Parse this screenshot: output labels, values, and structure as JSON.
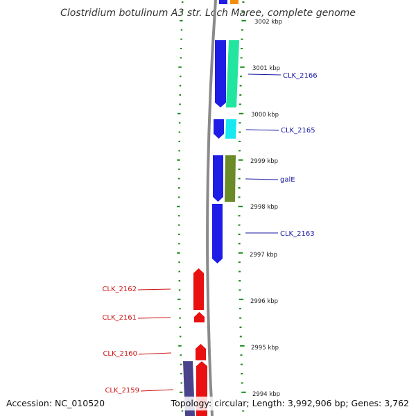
{
  "title": "Clostridium botulinum A3 str. Loch Maree, complete genome",
  "accession": "Accession: NC_010520",
  "topology": "Topology: circular; Length: 3,992,906 bp; Genes: 3,762",
  "kbp_labels": [
    "3002 kbp",
    "3001 kbp",
    "3000 kbp",
    "2999 kbp",
    "2998 kbp",
    "2997 kbp",
    "2996 kbp",
    "2995 kbp",
    "2994 kbp"
  ],
  "forward_genes": [
    {
      "label": "CLK_2166",
      "color": "#1d1de6"
    },
    {
      "label": "CLK_2165",
      "color": "#1d1de6"
    },
    {
      "label": "galE",
      "color": "#1d1de6"
    },
    {
      "label": "CLK_2163",
      "color": "#1d1de6"
    }
  ],
  "reverse_genes": [
    {
      "label": "CLK_2162",
      "color": "#e81010"
    },
    {
      "label": "CLK_2161",
      "color": "#e81010"
    },
    {
      "label": "CLK_2160",
      "color": "#e81010"
    },
    {
      "label": "CLK_2159",
      "color": "#e81010"
    }
  ],
  "colors": {
    "forward_label": "#1414a0",
    "reverse_label": "#cc1010",
    "tick": "#1a8a1a",
    "backbone": "#8a8a8a",
    "cog_green": "#22e6a0",
    "cog_cyan": "#18e8f0",
    "cog_olive": "#6b8a28",
    "cog_purple": "#4a428a",
    "cog_orange": "#f0900a"
  }
}
